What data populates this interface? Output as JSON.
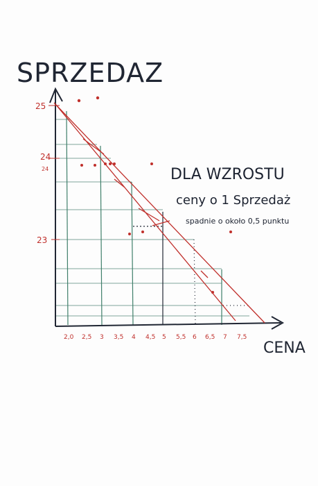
{
  "y_axis_title": "SPRZEDAZ",
  "x_axis_title": "CENA",
  "note": {
    "line1": "DLA WZROSTU",
    "line2": "ceny o 1 Sprzedaż",
    "line3": "spadnie o około 0,5 punktu"
  },
  "y_ticks": [
    "25",
    "24",
    "24",
    "23"
  ],
  "x_ticks": [
    "2,0",
    "2,5",
    "3",
    "3,5",
    "4",
    "4,5",
    "5",
    "5,5",
    "6",
    "6,5",
    "7",
    "7,5"
  ],
  "colors": {
    "ink": "#202633",
    "red": "#c0302c",
    "green": "#3f7f6a",
    "grid": "#7fa59a"
  }
}
